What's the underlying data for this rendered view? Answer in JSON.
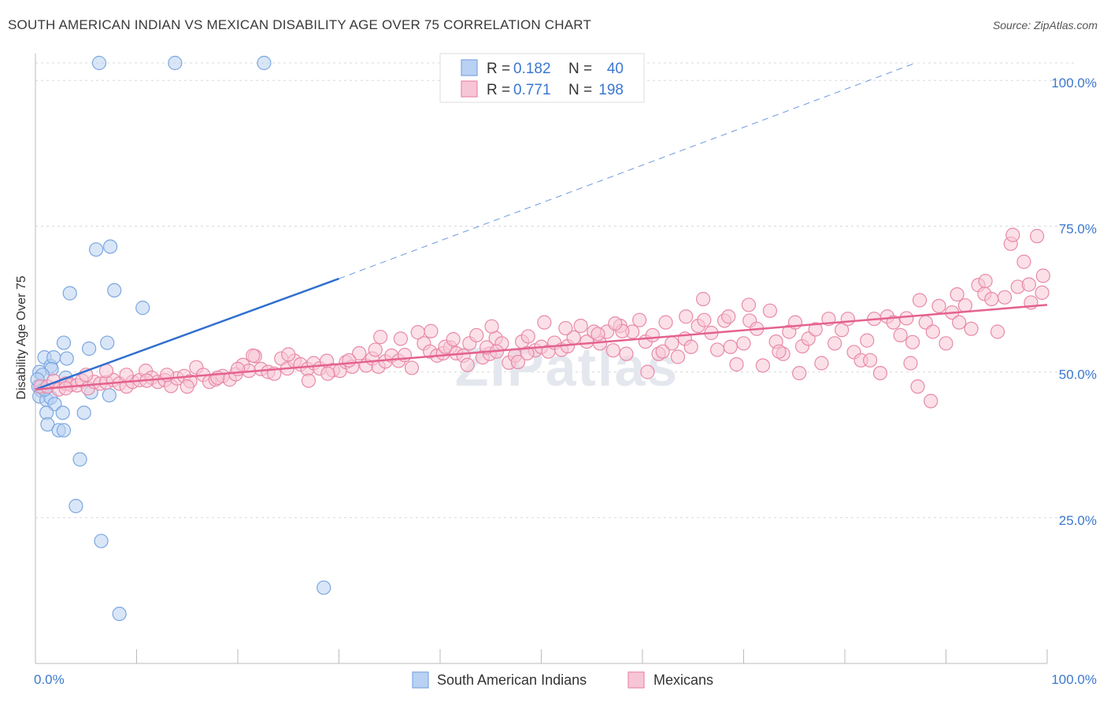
{
  "chart_data": {
    "type": "scatter",
    "title": "SOUTH AMERICAN INDIAN VS MEXICAN DISABILITY AGE OVER 75 CORRELATION CHART",
    "source": "Source: ZipAtlas.com",
    "xlabel": "",
    "ylabel": "Disability Age Over 75",
    "xlim": [
      0,
      100
    ],
    "ylim": [
      0,
      103
    ],
    "x_tick_labels": [
      "0.0%",
      "100.0%"
    ],
    "y_ticks": [
      25,
      50,
      75,
      100
    ],
    "y_tick_labels": [
      "25.0%",
      "50.0%",
      "75.0%",
      "100.0%"
    ],
    "watermark": "ZIPatlas",
    "legend": {
      "position": "top-center",
      "rows": [
        {
          "r_label": "R =",
          "r_value": "0.182",
          "n_label": "N =",
          "n_value": "40"
        },
        {
          "r_label": "R =",
          "r_value": "0.771",
          "n_label": "N =",
          "n_value": "198"
        }
      ]
    },
    "series": [
      {
        "name": "South American Indians",
        "color": "#7ba7e0",
        "fill": "#b9d1f3",
        "line_color": "#2f6fcf",
        "trend": {
          "x0": 0,
          "y0": 47,
          "x1": 30,
          "y1": 66,
          "dashed_to_x": 87,
          "dashed_to_y": 103
        },
        "points": [
          [
            6.3,
            103
          ],
          [
            13.8,
            103
          ],
          [
            22.6,
            103
          ],
          [
            6.0,
            71
          ],
          [
            7.4,
            71.5
          ],
          [
            3.4,
            63.5
          ],
          [
            7.8,
            64
          ],
          [
            10.6,
            61
          ],
          [
            2.8,
            55
          ],
          [
            7.1,
            55
          ],
          [
            5.3,
            54
          ],
          [
            0.9,
            52.5
          ],
          [
            1.5,
            51
          ],
          [
            1.8,
            52.5
          ],
          [
            3.1,
            52.3
          ],
          [
            1.6,
            50.5
          ],
          [
            3.0,
            49
          ],
          [
            0.4,
            50
          ],
          [
            0.7,
            49.5
          ],
          [
            0.3,
            47.5
          ],
          [
            0.6,
            46.8
          ],
          [
            0.4,
            45.8
          ],
          [
            1.1,
            45.2
          ],
          [
            1.5,
            45.6
          ],
          [
            5.5,
            46.5
          ],
          [
            7.3,
            46
          ],
          [
            0.2,
            48.7
          ],
          [
            0.9,
            47
          ],
          [
            1.9,
            44.5
          ],
          [
            1.1,
            43
          ],
          [
            2.7,
            43
          ],
          [
            4.8,
            43
          ],
          [
            1.2,
            41
          ],
          [
            2.3,
            40
          ],
          [
            2.8,
            40
          ],
          [
            4.4,
            35
          ],
          [
            4.0,
            27
          ],
          [
            6.5,
            21
          ],
          [
            28.5,
            13
          ],
          [
            8.3,
            8.5
          ]
        ]
      },
      {
        "name": "Mexicans",
        "color": "#e88aa8",
        "fill": "#f7c6d6",
        "line_color": "#e4628f",
        "trend": {
          "x0": 0,
          "y0": 47,
          "x1": 100,
          "y1": 61.5
        },
        "points": [
          [
            0.5,
            47.5
          ],
          [
            1.2,
            47.5
          ],
          [
            1.8,
            48.5
          ],
          [
            2.3,
            47
          ],
          [
            3.0,
            48
          ],
          [
            3.5,
            47.8
          ],
          [
            4.1,
            47.7
          ],
          [
            4.6,
            48.5
          ],
          [
            5.2,
            47.2
          ],
          [
            5.8,
            48.3
          ],
          [
            6.4,
            48
          ],
          [
            7.0,
            48.2
          ],
          [
            7.7,
            48.6
          ],
          [
            8.3,
            48
          ],
          [
            9.0,
            47.5
          ],
          [
            9.6,
            48.3
          ],
          [
            10.3,
            48.6
          ],
          [
            10.9,
            50.2
          ],
          [
            11.5,
            49
          ],
          [
            12.1,
            48.3
          ],
          [
            12.8,
            48.6
          ],
          [
            13.4,
            47.6
          ],
          [
            14.0,
            48.9
          ],
          [
            14.7,
            49.3
          ],
          [
            15.3,
            48.4
          ],
          [
            15.9,
            50.8
          ],
          [
            16.6,
            49.5
          ],
          [
            17.2,
            48.3
          ],
          [
            17.8,
            48.7
          ],
          [
            18.5,
            49.3
          ],
          [
            19.2,
            48.7
          ],
          [
            19.8,
            49.6
          ],
          [
            20.5,
            51.2
          ],
          [
            21.1,
            50.2
          ],
          [
            21.7,
            52.7
          ],
          [
            22.3,
            50.5
          ],
          [
            23.0,
            50
          ],
          [
            23.6,
            49.7
          ],
          [
            24.3,
            52.3
          ],
          [
            24.9,
            50.6
          ],
          [
            25.6,
            51.9
          ],
          [
            26.2,
            51.3
          ],
          [
            26.9,
            50.5
          ],
          [
            27.5,
            51.5
          ],
          [
            28.1,
            50.6
          ],
          [
            28.8,
            51.9
          ],
          [
            29.4,
            50.3
          ],
          [
            30.1,
            50.2
          ],
          [
            30.7,
            51.7
          ],
          [
            31.3,
            50.9
          ],
          [
            32.0,
            53.2
          ],
          [
            32.7,
            51.1
          ],
          [
            33.3,
            52.3
          ],
          [
            33.9,
            50.9
          ],
          [
            34.6,
            51.8
          ],
          [
            35.2,
            52.8
          ],
          [
            35.9,
            51.9
          ],
          [
            36.5,
            52.9
          ],
          [
            37.2,
            50.7
          ],
          [
            37.8,
            56.8
          ],
          [
            38.4,
            54.9
          ],
          [
            39.0,
            53.5
          ],
          [
            39.7,
            52.8
          ],
          [
            40.3,
            53.2
          ],
          [
            41.0,
            54.2
          ],
          [
            41.6,
            53.2
          ],
          [
            42.3,
            52.8
          ],
          [
            42.9,
            54.9
          ],
          [
            43.6,
            56.3
          ],
          [
            44.2,
            52.5
          ],
          [
            44.9,
            53.1
          ],
          [
            45.5,
            55.8
          ],
          [
            46.1,
            54.9
          ],
          [
            46.8,
            51.6
          ],
          [
            47.4,
            52.8
          ],
          [
            48.1,
            55.2
          ],
          [
            48.7,
            56.1
          ],
          [
            49.4,
            53.7
          ],
          [
            50.0,
            54.3
          ],
          [
            50.7,
            53.5
          ],
          [
            51.3,
            55
          ],
          [
            52.0,
            53.8
          ],
          [
            52.6,
            54.4
          ],
          [
            53.2,
            55.9
          ],
          [
            53.9,
            57.9
          ],
          [
            54.5,
            55.2
          ],
          [
            55.2,
            56.9
          ],
          [
            55.8,
            54.9
          ],
          [
            56.5,
            56.9
          ],
          [
            57.1,
            53.7
          ],
          [
            57.8,
            57.9
          ],
          [
            58.4,
            53.1
          ],
          [
            59.0,
            56.9
          ],
          [
            59.7,
            58.9
          ],
          [
            60.3,
            55.2
          ],
          [
            61.0,
            56.3
          ],
          [
            61.6,
            53.1
          ],
          [
            62.3,
            58.5
          ],
          [
            62.9,
            54.9
          ],
          [
            63.5,
            52.6
          ],
          [
            64.2,
            55.7
          ],
          [
            64.8,
            54.3
          ],
          [
            65.5,
            57.9
          ],
          [
            66.1,
            58.9
          ],
          [
            66.8,
            56.7
          ],
          [
            67.4,
            53.8
          ],
          [
            68.1,
            58.8
          ],
          [
            68.7,
            54.3
          ],
          [
            69.3,
            51.3
          ],
          [
            70.0,
            54.9
          ],
          [
            70.6,
            58.8
          ],
          [
            71.3,
            57.4
          ],
          [
            71.9,
            51.1
          ],
          [
            72.6,
            60.5
          ],
          [
            73.2,
            55.2
          ],
          [
            73.9,
            53.1
          ],
          [
            74.5,
            56.9
          ],
          [
            75.1,
            58.5
          ],
          [
            75.8,
            54.4
          ],
          [
            76.4,
            55.7
          ],
          [
            77.1,
            57.3
          ],
          [
            77.7,
            51.5
          ],
          [
            78.4,
            59.1
          ],
          [
            79.0,
            54.9
          ],
          [
            79.7,
            57.2
          ],
          [
            80.3,
            59.1
          ],
          [
            80.9,
            53.4
          ],
          [
            81.6,
            52
          ],
          [
            82.2,
            55.4
          ],
          [
            82.9,
            59.1
          ],
          [
            83.5,
            49.8
          ],
          [
            84.2,
            59.5
          ],
          [
            84.8,
            58.5
          ],
          [
            85.5,
            56.3
          ],
          [
            86.1,
            59.2
          ],
          [
            86.7,
            55.1
          ],
          [
            87.4,
            62.3
          ],
          [
            88.0,
            58.5
          ],
          [
            88.7,
            56.9
          ],
          [
            89.3,
            61.3
          ],
          [
            90.0,
            54.9
          ],
          [
            90.6,
            60.2
          ],
          [
            91.3,
            58.5
          ],
          [
            91.9,
            61.4
          ],
          [
            92.5,
            57.4
          ],
          [
            93.2,
            64.9
          ],
          [
            93.8,
            63.4
          ],
          [
            94.5,
            62.5
          ],
          [
            95.1,
            56.9
          ],
          [
            95.8,
            62.8
          ],
          [
            96.4,
            72
          ],
          [
            97.1,
            64.6
          ],
          [
            97.7,
            68.9
          ],
          [
            98.4,
            61.9
          ],
          [
            99.0,
            73.3
          ],
          [
            99.6,
            66.5
          ],
          [
            58.0,
            57
          ],
          [
            62.0,
            53.5
          ],
          [
            70.5,
            61.5
          ],
          [
            73.5,
            53.5
          ],
          [
            86.5,
            51.5
          ],
          [
            87.2,
            47.5
          ],
          [
            88.5,
            45
          ],
          [
            82.5,
            52
          ],
          [
            75.5,
            49.8
          ],
          [
            68.5,
            59.5
          ],
          [
            66.0,
            62.5
          ],
          [
            64.3,
            59.5
          ],
          [
            50.3,
            58.5
          ],
          [
            52.4,
            57.5
          ],
          [
            45.1,
            57.8
          ],
          [
            44.6,
            54.2
          ],
          [
            48.6,
            53.2
          ],
          [
            55.6,
            56.5
          ],
          [
            40.5,
            54.3
          ],
          [
            36.1,
            55.7
          ],
          [
            39.1,
            57
          ],
          [
            42.7,
            51.2
          ],
          [
            41.3,
            55.6
          ],
          [
            34.1,
            56
          ],
          [
            31.0,
            52
          ],
          [
            27.0,
            48.5
          ],
          [
            25.0,
            53
          ],
          [
            20.0,
            50.5
          ],
          [
            18.0,
            49
          ],
          [
            15.0,
            47.5
          ],
          [
            13.0,
            49.5
          ],
          [
            11.0,
            48.5
          ],
          [
            9.0,
            49.5
          ],
          [
            7.0,
            50.2
          ],
          [
            5.0,
            49.5
          ],
          [
            3.0,
            47.2
          ],
          [
            96.6,
            73.5
          ],
          [
            93.9,
            65.6
          ],
          [
            99.5,
            63.6
          ],
          [
            98.2,
            65
          ],
          [
            91.1,
            63.3
          ],
          [
            60.5,
            50
          ],
          [
            57.3,
            58.3
          ],
          [
            45.6,
            53.5
          ],
          [
            47.7,
            51.7
          ],
          [
            33.6,
            53.8
          ],
          [
            28.9,
            49.7
          ],
          [
            21.5,
            52.8
          ]
        ]
      }
    ]
  }
}
